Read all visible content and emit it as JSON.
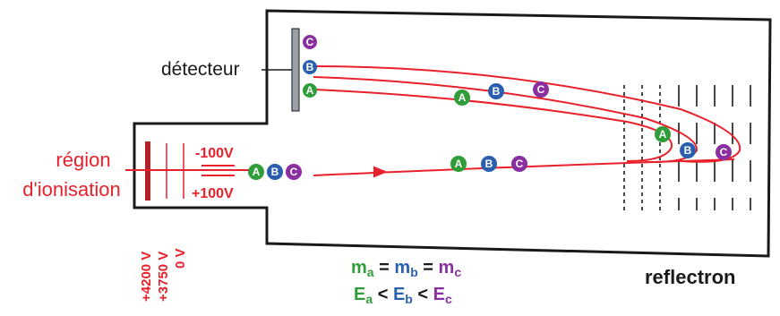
{
  "labels": {
    "detector": "détecteur",
    "ionisation_line1": "région",
    "ionisation_line2": "d'ionisation",
    "reflectron": "reflectron",
    "grid_minus": "-100V",
    "grid_plus": "+100V",
    "voltages": [
      "+4200 V",
      "+3750 V",
      "0 V"
    ]
  },
  "equations": {
    "mass": {
      "parts": [
        "m",
        "a",
        " = ",
        "m",
        "b",
        " = ",
        "m",
        "c"
      ]
    },
    "energy": {
      "parts": [
        "E",
        "a",
        " < ",
        "E",
        "b",
        " < ",
        "E",
        "c"
      ]
    }
  },
  "ions": {
    "A": {
      "letter": "A",
      "color": "#2f9e3a"
    },
    "B": {
      "letter": "B",
      "color": "#2a5fb0"
    },
    "C": {
      "letter": "C",
      "color": "#8a2fa0"
    }
  },
  "colors": {
    "path": "#e8212b",
    "label_red": "#e8212b",
    "outline": "#1a1a1a",
    "detector_plate": "#9aa0a8"
  }
}
